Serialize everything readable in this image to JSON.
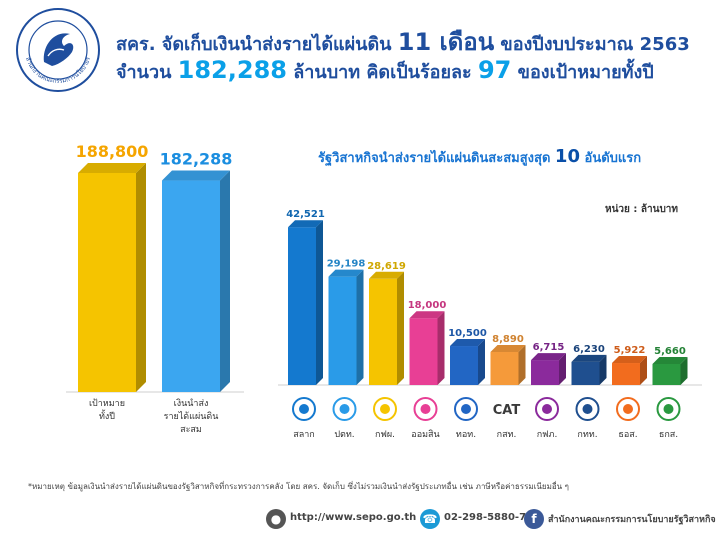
{
  "header": {
    "line1_prefix": "สคร. จัดเก็บเงินนำส่งรายได้แผ่นดิน",
    "line1_months": "11 เดือน",
    "line1_suffix": "ของปีงบประมาณ 2563",
    "line2_prefix": "จำนวน",
    "line2_amount": "182,288",
    "line2_mid": "ล้านบาท คิดเป็นร้อยละ",
    "line2_percent": "97",
    "line2_suffix": "ของเป้าหมายทั้งปี"
  },
  "logo": {
    "text": "สำนักงานคณะกรรมการนโยบายรัฐวิสาหกิจ"
  },
  "subtitle": {
    "prefix": "รัฐวิสาหกิจนำส่งรายได้แผ่นดินสะสมสูงสุด",
    "count": "10",
    "suffix": "อันดับแรก"
  },
  "unit_label": "หน่วย : ล้านบาท",
  "note": "*หมายเหตุ ข้อมูลเงินนำส่งรายได้แผ่นดินของรัฐวิสาหกิจที่กระทรวงการคลัง โดย สคร. จัดเก็บ ซึ่งไม่รวมเงินนำส่งรัฐประเภทอื่น เช่น ภาษีหรือค่าธรรมเนียมอื่น ๆ",
  "footer": {
    "website": "http://www.sepo.go.th",
    "phone": "02-298-5880-7",
    "facebook": "สำนักงานคณะกรรมการนโยบายรัฐวิสาหกิจ"
  },
  "colors": {
    "title": "#1f4e9e",
    "target": "#f5c400",
    "collected": "#3ba6f0",
    "enterprises": [
      "#1479cf",
      "#2a9be8",
      "#f5c400",
      "#e83f95",
      "#2266c4",
      "#f59a3a",
      "#8b2a9c",
      "#1f4f8f",
      "#f26c1e",
      "#2a9940"
    ]
  },
  "chart_data": [
    {
      "type": "bar",
      "title": "",
      "categories": [
        "เป้าหมายทั้งปี",
        "เงินนำส่งรายได้แผ่นดินสะสม"
      ],
      "category_lines": [
        [
          "เป้าหมาย",
          "ทั้งปี"
        ],
        [
          "เงินนำส่ง",
          "รายได้แผ่นดิน",
          "สะสม"
        ]
      ],
      "values": [
        188800,
        182288
      ],
      "value_labels": [
        "188,800",
        "182,288"
      ],
      "ylim": [
        0,
        200000
      ]
    },
    {
      "type": "bar",
      "title": "รัฐวิสาหกิจนำส่งรายได้แผ่นดินสะสมสูงสุด 10 อันดับแรก",
      "ylabel": "ล้านบาท",
      "categories": [
        "สลาก",
        "ปตท.",
        "กฟผ.",
        "ออมสิน",
        "ทอท.",
        "กสท.",
        "กฟภ.",
        "กทท.",
        "ธอส.",
        "ธกส."
      ],
      "logo_marks": [
        "",
        "",
        "",
        "",
        "",
        "CAT",
        "",
        "",
        "",
        ""
      ],
      "values": [
        42521,
        29198,
        28619,
        18000,
        10500,
        8890,
        6715,
        6230,
        5922,
        5660
      ],
      "value_labels": [
        "42,521",
        "29,198",
        "28,619",
        "18,000",
        "10,500",
        "8,890",
        "6,715",
        "6,230",
        "5,922",
        "5,660"
      ],
      "ylim": [
        0,
        45000
      ]
    }
  ]
}
